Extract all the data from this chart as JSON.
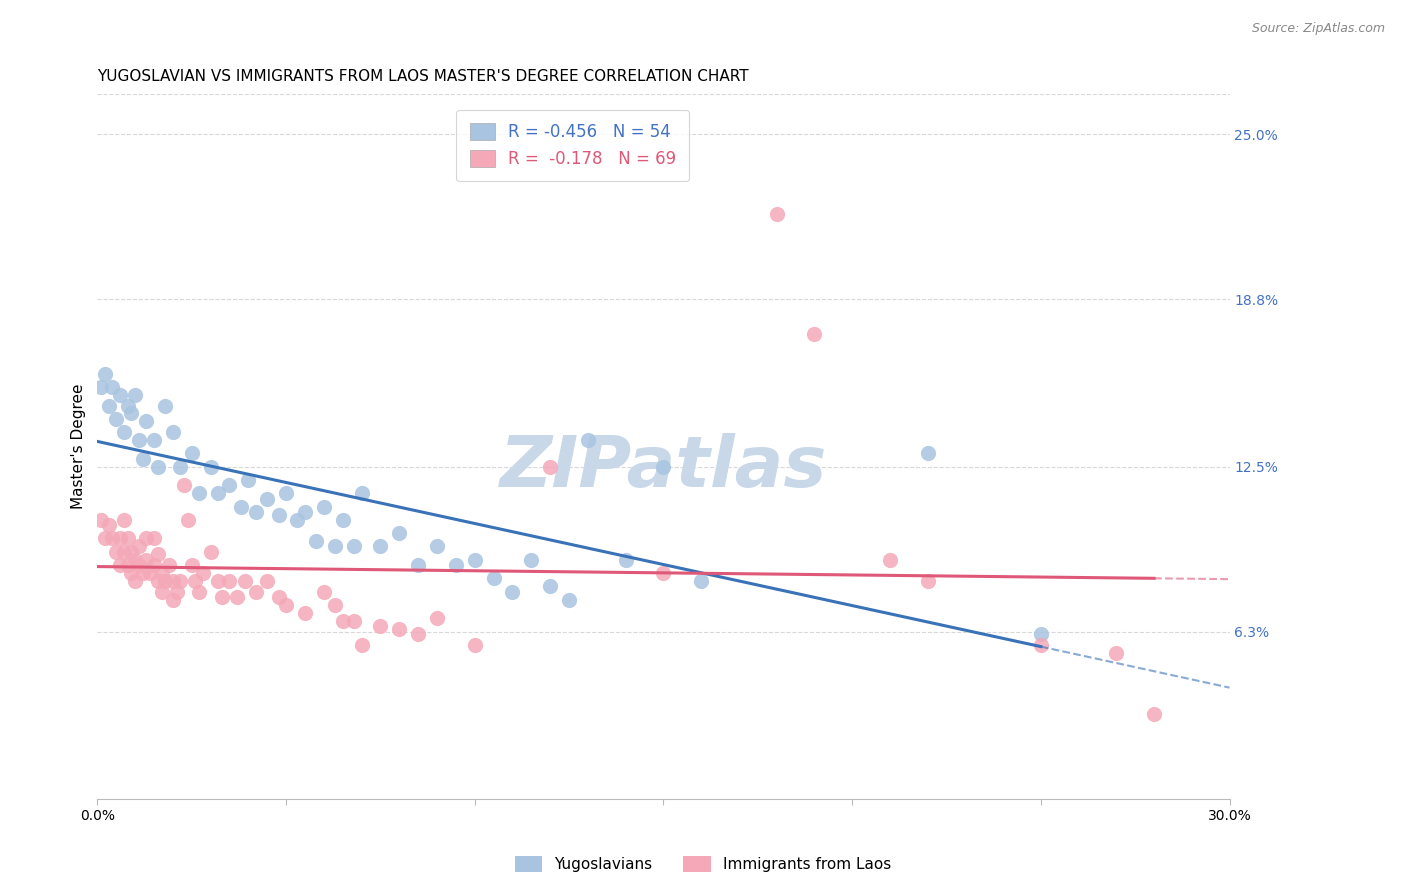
{
  "title": "YUGOSLAVIAN VS IMMIGRANTS FROM LAOS MASTER'S DEGREE CORRELATION CHART",
  "source": "Source: ZipAtlas.com",
  "ylabel": "Master's Degree",
  "ytick_values": [
    0.25,
    0.188,
    0.125,
    0.063
  ],
  "xlim": [
    0.0,
    0.3
  ],
  "ylim": [
    0.0,
    0.265
  ],
  "watermark": "ZIPatlas",
  "blue_scatter_color": "#a8c4e0",
  "pink_scatter_color": "#f4a8b8",
  "blue_line_color": "#3a72b8",
  "pink_line_color": "#e05878",
  "blue_points": [
    [
      0.001,
      0.155
    ],
    [
      0.002,
      0.16
    ],
    [
      0.003,
      0.148
    ],
    [
      0.004,
      0.155
    ],
    [
      0.005,
      0.143
    ],
    [
      0.006,
      0.152
    ],
    [
      0.007,
      0.138
    ],
    [
      0.008,
      0.148
    ],
    [
      0.009,
      0.145
    ],
    [
      0.01,
      0.152
    ],
    [
      0.011,
      0.135
    ],
    [
      0.012,
      0.128
    ],
    [
      0.013,
      0.142
    ],
    [
      0.015,
      0.135
    ],
    [
      0.016,
      0.125
    ],
    [
      0.018,
      0.148
    ],
    [
      0.02,
      0.138
    ],
    [
      0.022,
      0.125
    ],
    [
      0.025,
      0.13
    ],
    [
      0.027,
      0.115
    ],
    [
      0.03,
      0.125
    ],
    [
      0.032,
      0.115
    ],
    [
      0.035,
      0.118
    ],
    [
      0.038,
      0.11
    ],
    [
      0.04,
      0.12
    ],
    [
      0.042,
      0.108
    ],
    [
      0.045,
      0.113
    ],
    [
      0.048,
      0.107
    ],
    [
      0.05,
      0.115
    ],
    [
      0.053,
      0.105
    ],
    [
      0.055,
      0.108
    ],
    [
      0.058,
      0.097
    ],
    [
      0.06,
      0.11
    ],
    [
      0.063,
      0.095
    ],
    [
      0.065,
      0.105
    ],
    [
      0.068,
      0.095
    ],
    [
      0.07,
      0.115
    ],
    [
      0.075,
      0.095
    ],
    [
      0.08,
      0.1
    ],
    [
      0.085,
      0.088
    ],
    [
      0.09,
      0.095
    ],
    [
      0.095,
      0.088
    ],
    [
      0.1,
      0.09
    ],
    [
      0.105,
      0.083
    ],
    [
      0.11,
      0.078
    ],
    [
      0.115,
      0.09
    ],
    [
      0.12,
      0.08
    ],
    [
      0.125,
      0.075
    ],
    [
      0.13,
      0.135
    ],
    [
      0.14,
      0.09
    ],
    [
      0.15,
      0.125
    ],
    [
      0.16,
      0.082
    ],
    [
      0.22,
      0.13
    ],
    [
      0.25,
      0.062
    ]
  ],
  "pink_points": [
    [
      0.001,
      0.105
    ],
    [
      0.002,
      0.098
    ],
    [
      0.003,
      0.103
    ],
    [
      0.004,
      0.098
    ],
    [
      0.005,
      0.093
    ],
    [
      0.006,
      0.088
    ],
    [
      0.006,
      0.098
    ],
    [
      0.007,
      0.105
    ],
    [
      0.007,
      0.093
    ],
    [
      0.008,
      0.088
    ],
    [
      0.008,
      0.098
    ],
    [
      0.009,
      0.085
    ],
    [
      0.009,
      0.093
    ],
    [
      0.01,
      0.082
    ],
    [
      0.01,
      0.09
    ],
    [
      0.011,
      0.088
    ],
    [
      0.011,
      0.095
    ],
    [
      0.012,
      0.085
    ],
    [
      0.013,
      0.098
    ],
    [
      0.013,
      0.09
    ],
    [
      0.014,
      0.085
    ],
    [
      0.015,
      0.098
    ],
    [
      0.015,
      0.088
    ],
    [
      0.016,
      0.082
    ],
    [
      0.016,
      0.092
    ],
    [
      0.017,
      0.085
    ],
    [
      0.017,
      0.078
    ],
    [
      0.018,
      0.082
    ],
    [
      0.019,
      0.088
    ],
    [
      0.02,
      0.082
    ],
    [
      0.02,
      0.075
    ],
    [
      0.021,
      0.078
    ],
    [
      0.022,
      0.082
    ],
    [
      0.023,
      0.118
    ],
    [
      0.024,
      0.105
    ],
    [
      0.025,
      0.088
    ],
    [
      0.026,
      0.082
    ],
    [
      0.027,
      0.078
    ],
    [
      0.028,
      0.085
    ],
    [
      0.03,
      0.093
    ],
    [
      0.032,
      0.082
    ],
    [
      0.033,
      0.076
    ],
    [
      0.035,
      0.082
    ],
    [
      0.037,
      0.076
    ],
    [
      0.039,
      0.082
    ],
    [
      0.042,
      0.078
    ],
    [
      0.045,
      0.082
    ],
    [
      0.048,
      0.076
    ],
    [
      0.05,
      0.073
    ],
    [
      0.055,
      0.07
    ],
    [
      0.06,
      0.078
    ],
    [
      0.063,
      0.073
    ],
    [
      0.065,
      0.067
    ],
    [
      0.068,
      0.067
    ],
    [
      0.07,
      0.058
    ],
    [
      0.075,
      0.065
    ],
    [
      0.08,
      0.064
    ],
    [
      0.085,
      0.062
    ],
    [
      0.09,
      0.068
    ],
    [
      0.1,
      0.058
    ],
    [
      0.12,
      0.125
    ],
    [
      0.15,
      0.085
    ],
    [
      0.18,
      0.22
    ],
    [
      0.19,
      0.175
    ],
    [
      0.21,
      0.09
    ],
    [
      0.22,
      0.082
    ],
    [
      0.25,
      0.058
    ],
    [
      0.27,
      0.055
    ],
    [
      0.28,
      0.032
    ]
  ],
  "grid_color": "#d8d8d8",
  "background_color": "#ffffff",
  "title_fontsize": 11,
  "axis_label_fontsize": 11,
  "tick_fontsize": 10,
  "right_tick_color": "#4472c4",
  "watermark_color": "#c8d8e8",
  "watermark_fontsize": 52,
  "legend_blue_label": "R = -0.456   N = 54",
  "legend_pink_label": "R =  -0.178   N = 69",
  "legend_blue_color": "#4472c4",
  "legend_pink_color": "#e05878"
}
